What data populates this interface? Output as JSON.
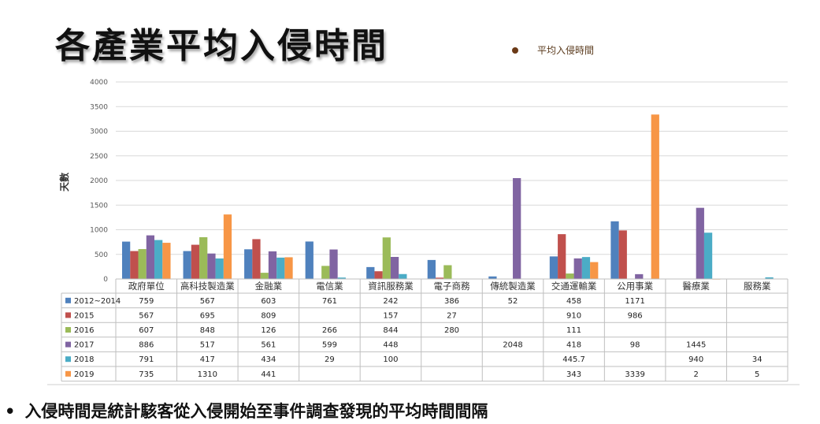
{
  "title": "各產業平均入侵時間",
  "legend_label": "平均入侵時間",
  "bullet_text": "入侵時間是統計駭客從入侵開始至事件調查發現的平均時間間隔",
  "colors": {
    "2012~2014": "#4f81bd",
    "2015": "#c0504d",
    "2016": "#9bbb59",
    "2017": "#8064a2",
    "2018": "#4bacc6",
    "2019": "#f79646",
    "legend_dot": "#6b3a17"
  },
  "chart_data": {
    "type": "bar",
    "ylabel": "天數",
    "ylim": [
      0,
      4000
    ],
    "yticks": [
      0,
      500,
      1000,
      1500,
      2000,
      2500,
      3000,
      3500,
      4000
    ],
    "grid": true,
    "categories": [
      "政府單位",
      "高科技製造業",
      "金融業",
      "電信業",
      "資訊服務業",
      "電子商務",
      "傳統製造業",
      "交通運輸業",
      "公用事業",
      "醫療業",
      "服務業"
    ],
    "series": [
      {
        "name": "2012~2014",
        "values": [
          759,
          567,
          603,
          761,
          242,
          386,
          52,
          458,
          1171,
          null,
          null
        ]
      },
      {
        "name": "2015",
        "values": [
          567,
          695,
          809,
          null,
          157,
          27,
          null,
          910,
          986,
          null,
          null
        ]
      },
      {
        "name": "2016",
        "values": [
          607,
          848,
          126,
          266,
          844,
          280,
          null,
          111,
          null,
          null,
          null
        ]
      },
      {
        "name": "2017",
        "values": [
          886,
          517,
          561,
          599,
          448,
          null,
          2048,
          418,
          98,
          1445,
          null
        ]
      },
      {
        "name": "2018",
        "values": [
          791,
          417,
          434,
          29,
          100,
          null,
          null,
          445.7,
          null,
          940,
          34
        ]
      },
      {
        "name": "2019",
        "values": [
          735,
          1310,
          441,
          null,
          null,
          null,
          null,
          343,
          3339,
          2,
          5
        ]
      }
    ]
  }
}
